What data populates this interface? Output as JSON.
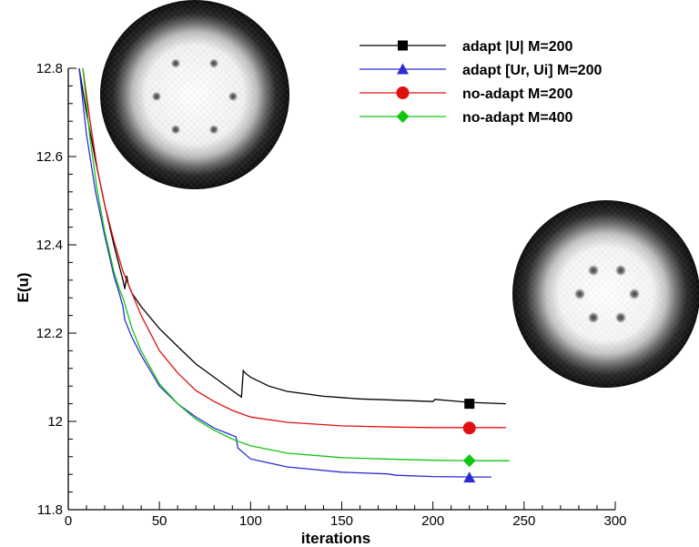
{
  "chart_data": {
    "type": "line",
    "title": "",
    "xlabel": "iterations",
    "ylabel": "E(u)",
    "xlim": [
      0,
      300
    ],
    "ylim": [
      11.8,
      12.8
    ],
    "xticks": [
      "0",
      "50",
      "100",
      "150",
      "200",
      "250",
      "300"
    ],
    "yticks": [
      "11.8",
      "12",
      "12.2",
      "12.4",
      "12.6",
      "12.8"
    ],
    "grid": false,
    "legend_position": "top-right",
    "series": [
      {
        "name": "adapt |U|  M=200",
        "color": "#000000",
        "marker": "square",
        "marker_point": [
          220,
          12.04
        ],
        "x": [
          6,
          10,
          15,
          20,
          25,
          30,
          31,
          32,
          33,
          35,
          40,
          50,
          60,
          70,
          80,
          90,
          95,
          96,
          97,
          100,
          110,
          120,
          140,
          160,
          180,
          200,
          201,
          220,
          240
        ],
        "y": [
          12.8,
          12.7,
          12.59,
          12.49,
          12.4,
          12.32,
          12.3,
          12.33,
          12.31,
          12.29,
          12.26,
          12.21,
          12.17,
          12.13,
          12.1,
          12.07,
          12.055,
          12.115,
          12.11,
          12.1,
          12.08,
          12.068,
          12.057,
          12.051,
          12.048,
          12.045,
          12.05,
          12.043,
          12.04
        ]
      },
      {
        "name": "adapt [Ur, Ui]  M=200",
        "color": "#2b2bd6",
        "marker": "triangle",
        "marker_point": [
          220,
          11.873
        ],
        "x": [
          6,
          10,
          15,
          20,
          25,
          28,
          30,
          31,
          35,
          40,
          50,
          60,
          70,
          80,
          92,
          93,
          100,
          120,
          150,
          175,
          180,
          200,
          220,
          232
        ],
        "y": [
          12.8,
          12.65,
          12.52,
          12.42,
          12.33,
          12.29,
          12.26,
          12.23,
          12.19,
          12.15,
          12.08,
          12.04,
          12.01,
          11.985,
          11.965,
          11.94,
          11.915,
          11.897,
          11.885,
          11.881,
          11.878,
          11.875,
          11.874,
          11.874
        ]
      },
      {
        "name": "no-adapt  M=200",
        "color": "#e01010",
        "marker": "circle",
        "marker_point": [
          220,
          11.985
        ],
        "x": [
          8,
          12,
          16,
          18,
          19,
          20,
          25,
          30,
          40,
          50,
          60,
          70,
          80,
          90,
          100,
          120,
          150,
          180,
          200,
          220,
          240
        ],
        "y": [
          12.8,
          12.68,
          12.57,
          12.53,
          12.51,
          12.49,
          12.41,
          12.34,
          12.24,
          12.16,
          12.11,
          12.07,
          12.045,
          12.025,
          12.01,
          11.998,
          11.99,
          11.987,
          11.986,
          11.986,
          11.986
        ]
      },
      {
        "name": "no-adapt  M=400",
        "color": "#11c611",
        "marker": "diamond",
        "marker_point": [
          220,
          11.911
        ],
        "x": [
          8,
          12,
          16,
          20,
          25,
          28,
          30,
          35,
          40,
          50,
          60,
          70,
          80,
          90,
          95,
          100,
          120,
          150,
          180,
          200,
          220,
          242
        ],
        "y": [
          12.8,
          12.64,
          12.52,
          12.43,
          12.34,
          12.3,
          12.28,
          12.21,
          12.16,
          12.085,
          12.04,
          12.005,
          11.98,
          11.96,
          11.952,
          11.945,
          11.928,
          11.918,
          11.914,
          11.912,
          11.911,
          11.911
        ]
      }
    ],
    "insets": [
      {
        "description": "mesh disk with 6 vortices (adapted)",
        "vortex_count": 6
      },
      {
        "description": "mesh disk with 6 vortices (non-adapted)",
        "vortex_count": 6
      }
    ]
  }
}
